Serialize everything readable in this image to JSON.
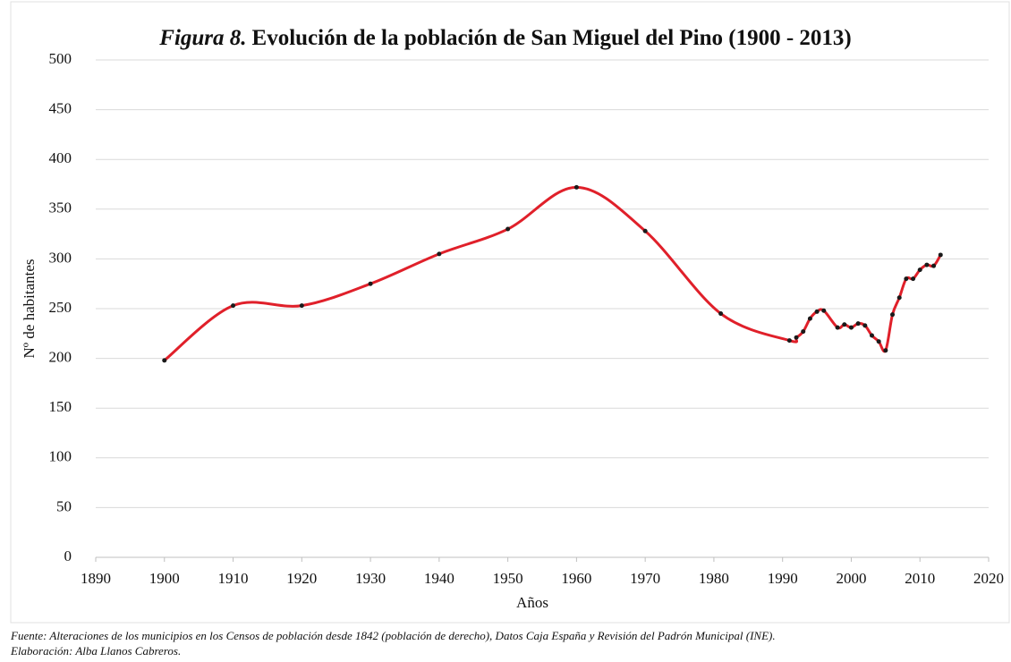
{
  "chart_data": {
    "type": "line",
    "figure_label": "Figura 8.",
    "title": "Evolución de la población de San Miguel del Pino (1900 - 2013)",
    "x_label": "Años",
    "y_label": "Nº de habitantes",
    "source": "Fuente: Alteraciones de los municipios en los Censos de población desde 1842 (población de derecho), Datos Caja España y Revisión del Padrón Municipal (INE).",
    "credit": "Elaboración: Alba Llanos Cabreros.",
    "x": [
      1900,
      1910,
      1920,
      1930,
      1940,
      1950,
      1960,
      1970,
      1981,
      1991,
      1992,
      1993,
      1994,
      1995,
      1996,
      1998,
      1999,
      2000,
      2001,
      2002,
      2003,
      2004,
      2005,
      2006,
      2007,
      2008,
      2009,
      2010,
      2011,
      2012,
      2013
    ],
    "series": [
      {
        "name": "Población",
        "color": "#e0202a",
        "marker_color": "#1a1a1a",
        "values": [
          198,
          253,
          253,
          275,
          305,
          330,
          372,
          328,
          245,
          218,
          221,
          227,
          240,
          247,
          248,
          231,
          234,
          231,
          235,
          233,
          223,
          217,
          208,
          244,
          261,
          280,
          280,
          289,
          294,
          293,
          304
        ]
      }
    ],
    "xlim": [
      1890,
      2020
    ],
    "xticks": [
      1890,
      1900,
      1910,
      1920,
      1930,
      1940,
      1950,
      1960,
      1970,
      1980,
      1990,
      2000,
      2010,
      2020
    ],
    "ylim": [
      0,
      500
    ],
    "yticks": [
      0,
      50,
      100,
      150,
      200,
      250,
      300,
      350,
      400,
      450,
      500
    ],
    "grid": true,
    "smooth": true
  }
}
